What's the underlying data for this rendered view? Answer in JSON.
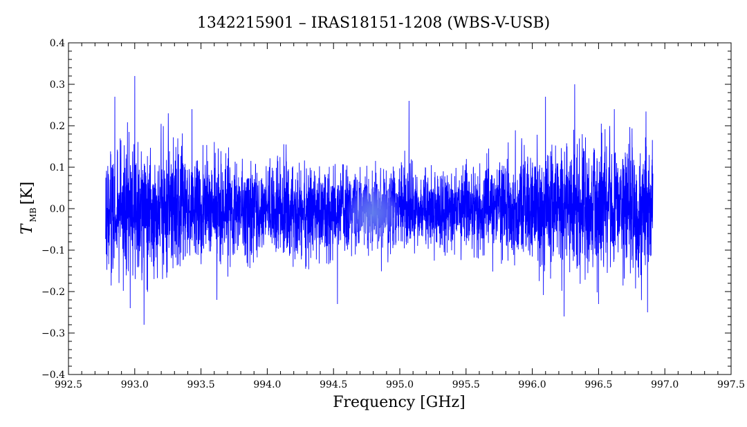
{
  "chart_data": {
    "type": "line",
    "title": "1342215901 – IRAS18151-1208 (WBS-V-USB)",
    "xlabel": "Frequency [GHz]",
    "ylabel": {
      "symbol": "T",
      "subscript": "MB",
      "unit": "[K]"
    },
    "xlim": [
      992.5,
      997.5
    ],
    "ylim": [
      -0.4,
      0.4
    ],
    "x_ticks": [
      992.5,
      993.0,
      993.5,
      994.0,
      994.5,
      995.0,
      995.5,
      996.0,
      996.5,
      997.0,
      997.5
    ],
    "x_tick_labels": [
      "992.5",
      "993.0",
      "993.5",
      "994.0",
      "994.5",
      "995.0",
      "995.5",
      "996.0",
      "996.5",
      "997.0",
      "997.5"
    ],
    "y_ticks": [
      -0.4,
      -0.3,
      -0.2,
      -0.1,
      0.0,
      0.1,
      0.2,
      0.3,
      0.4
    ],
    "y_tick_labels": [
      "−0.4",
      "−0.3",
      "−0.2",
      "−0.1",
      "0.0",
      "0.1",
      "0.2",
      "0.3",
      "0.4"
    ],
    "series": [
      {
        "color": "#0000ff",
        "x_start": 992.78,
        "x_end": 996.91,
        "baseline": 0.0,
        "noise_envelope": [
          [
            992.78,
            0.08
          ],
          [
            993.3,
            0.07
          ],
          [
            994.0,
            0.055
          ],
          [
            994.8,
            0.045
          ],
          [
            995.5,
            0.05
          ],
          [
            996.0,
            0.065
          ],
          [
            996.5,
            0.075
          ],
          [
            996.91,
            0.08
          ]
        ],
        "peaks": [
          {
            "x": 993.0,
            "y": 0.32
          },
          {
            "x": 993.07,
            "y": -0.28
          },
          {
            "x": 992.85,
            "y": 0.27
          },
          {
            "x": 995.07,
            "y": 0.26
          },
          {
            "x": 996.32,
            "y": 0.3
          },
          {
            "x": 996.1,
            "y": 0.27
          },
          {
            "x": 996.24,
            "y": -0.26
          },
          {
            "x": 996.87,
            "y": -0.25
          },
          {
            "x": 993.62,
            "y": -0.22
          },
          {
            "x": 994.53,
            "y": -0.23
          },
          {
            "x": 996.5,
            "y": -0.23
          }
        ]
      }
    ],
    "grid": false,
    "minor_ticks": true
  }
}
